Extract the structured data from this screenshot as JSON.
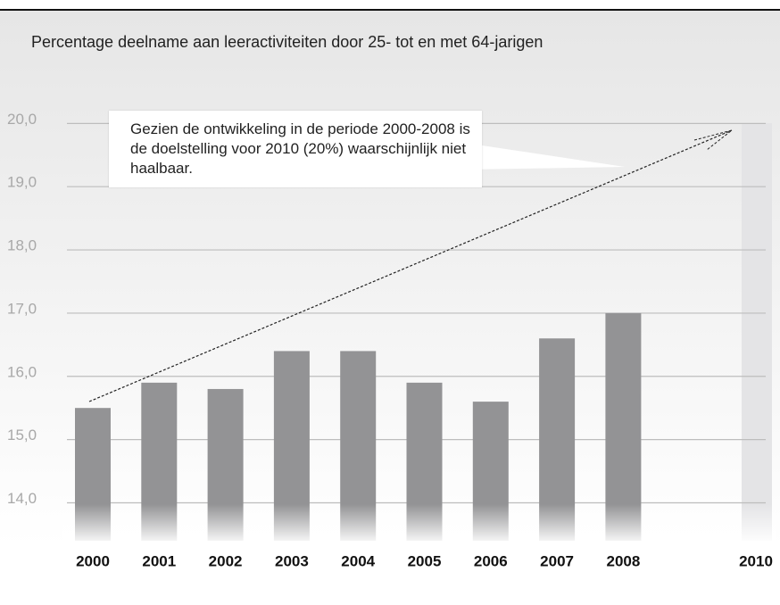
{
  "chart_data": {
    "type": "bar",
    "title": "Percentage deelname aan leeractiviteiten door 25- tot en met 64-jarigen",
    "annotation": "Gezien de ontwikkeling in de periode 2000-2008 is de doelstelling voor 2010 (20%) waarschijnlijk niet haalbaar.",
    "categories": [
      "2000",
      "2001",
      "2002",
      "2003",
      "2004",
      "2005",
      "2006",
      "2007",
      "2008",
      null,
      "2010"
    ],
    "values": [
      15.5,
      15.9,
      15.8,
      16.4,
      16.4,
      15.9,
      15.6,
      16.6,
      17.0,
      null,
      null
    ],
    "color": "#939395",
    "ylim": [
      13.4,
      20.4
    ],
    "yticks": [
      {
        "value": 14,
        "label": "14,0"
      },
      {
        "value": 15,
        "label": "15,0"
      },
      {
        "value": 16,
        "label": "16,0"
      },
      {
        "value": 17,
        "label": "17,0"
      },
      {
        "value": 18,
        "label": "18,0"
      },
      {
        "value": 19,
        "label": "19,0"
      },
      {
        "value": 20,
        "label": "20,0"
      }
    ],
    "grid": true
  }
}
